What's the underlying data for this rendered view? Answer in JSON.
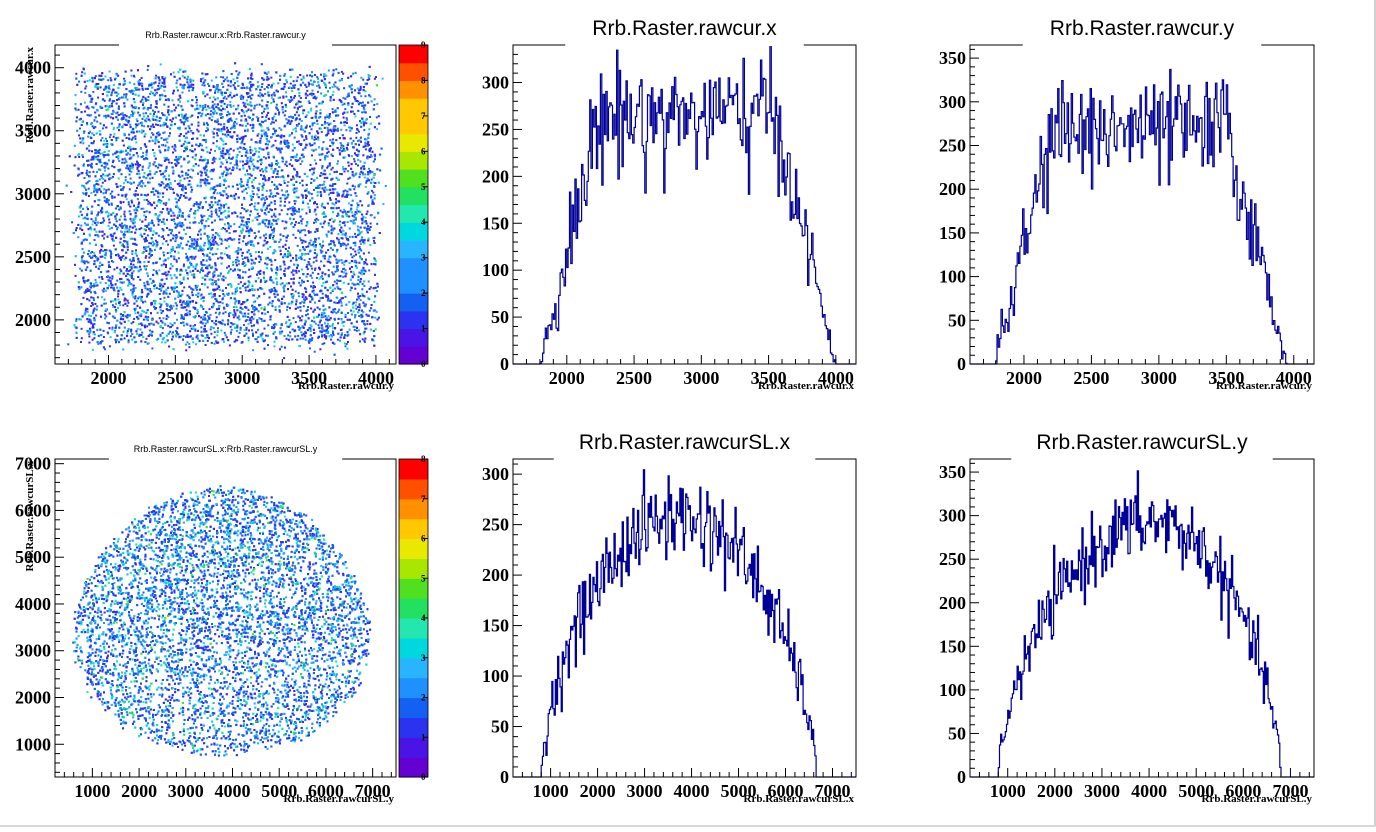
{
  "chart_data": [
    {
      "type": "heatmap",
      "title": "Rrb.Raster.rawcur.x:Rrb.Raster.rawcur.y",
      "xlabel": "Rrb.Raster.rawcur.y",
      "ylabel": "Rrb.Raster.rawcur.x",
      "xlim": [
        1600,
        4150
      ],
      "ylim": [
        1650,
        4180
      ],
      "x_ticks": [
        "2000",
        "2500",
        "3000",
        "3500",
        "4000"
      ],
      "y_ticks": [
        "2000",
        "2500",
        "3000",
        "3500",
        "4000"
      ],
      "palette_ticks": [
        "0",
        "1",
        "2",
        "3",
        "4",
        "5",
        "6",
        "7",
        "8",
        "9"
      ],
      "zmax": 9,
      "shape": "square",
      "region": {
        "x": [
          1780,
          3980
        ],
        "y": [
          1820,
          3960
        ]
      },
      "n_points": 9500,
      "grid": false
    },
    {
      "type": "histogram",
      "title": "Rrb.Raster.rawcur.x",
      "xlabel": "Rrb.Raster.rawcur.x",
      "xlim": [
        1600,
        4150
      ],
      "ylim": [
        0,
        340
      ],
      "x_ticks": [
        "2000",
        "2500",
        "3000",
        "3500",
        "4000"
      ],
      "y_ticks": [
        "0",
        "50",
        "100",
        "150",
        "200",
        "250",
        "300"
      ],
      "edges": [
        1800,
        2250,
        3550,
        4000
      ],
      "plateau": 265,
      "noise": 30,
      "bin_width": 10,
      "line_color": "#000099",
      "grid": false
    },
    {
      "type": "histogram",
      "title": "Rrb.Raster.rawcur.y",
      "xlabel": "Rrb.Raster.rawcur.y",
      "xlim": [
        1600,
        4150
      ],
      "ylim": [
        0,
        365
      ],
      "x_ticks": [
        "2000",
        "2500",
        "3000",
        "3500",
        "4000"
      ],
      "y_ticks": [
        "0",
        "50",
        "100",
        "150",
        "200",
        "250",
        "300",
        "350"
      ],
      "edges": [
        1780,
        2220,
        3500,
        3950
      ],
      "plateau": 268,
      "noise": 30,
      "bin_width": 10,
      "line_color": "#000099",
      "grid": false
    },
    {
      "type": "heatmap",
      "title": "Rrb.Raster.rawcurSL.x:Rrb.Raster.rawcurSL.y",
      "xlabel": "Rrb.Raster.rawcurSL.y",
      "ylabel": "Rrb.Raster.rawcurSL.x",
      "xlim": [
        200,
        7500
      ],
      "ylim": [
        300,
        7100
      ],
      "x_ticks": [
        "1000",
        "2000",
        "3000",
        "4000",
        "5000",
        "6000",
        "7000"
      ],
      "y_ticks": [
        "1000",
        "2000",
        "3000",
        "4000",
        "5000",
        "6000",
        "7000"
      ],
      "palette_ticks": [
        "0",
        "1",
        "2",
        "3",
        "4",
        "5",
        "6",
        "7",
        "8"
      ],
      "zmax": 8,
      "shape": "ellipse",
      "region": {
        "x": [
          600,
          6900
        ],
        "y": [
          800,
          6500
        ]
      },
      "n_points": 11000,
      "grid": false
    },
    {
      "type": "histogram",
      "title": "Rrb.Raster.rawcurSL.x",
      "xlabel": "Rrb.Raster.rawcurSL.x",
      "xlim": [
        200,
        7500
      ],
      "ylim": [
        0,
        315
      ],
      "x_ticks": [
        "1000",
        "2000",
        "3000",
        "4000",
        "5000",
        "6000",
        "7000"
      ],
      "y_ticks": [
        "0",
        "50",
        "100",
        "150",
        "200",
        "250",
        "300"
      ],
      "shape": "dome",
      "range": [
        800,
        6650
      ],
      "peak": 258,
      "noise": 22,
      "bin_width": 25,
      "line_color": "#000099",
      "grid": false
    },
    {
      "type": "histogram",
      "title": "Rrb.Raster.rawcurSL.y",
      "xlabel": "Rrb.Raster.rawcurSL.y",
      "xlim": [
        200,
        7500
      ],
      "ylim": [
        0,
        365
      ],
      "x_ticks": [
        "1000",
        "2000",
        "3000",
        "4000",
        "5000",
        "6000",
        "7000"
      ],
      "y_ticks": [
        "0",
        "50",
        "100",
        "150",
        "200",
        "250",
        "300",
        "350"
      ],
      "shape": "dome",
      "range": [
        800,
        6800
      ],
      "peak": 292,
      "skew": 0.55,
      "noise": 22,
      "bin_width": 25,
      "line_color": "#000099",
      "grid": false
    }
  ]
}
